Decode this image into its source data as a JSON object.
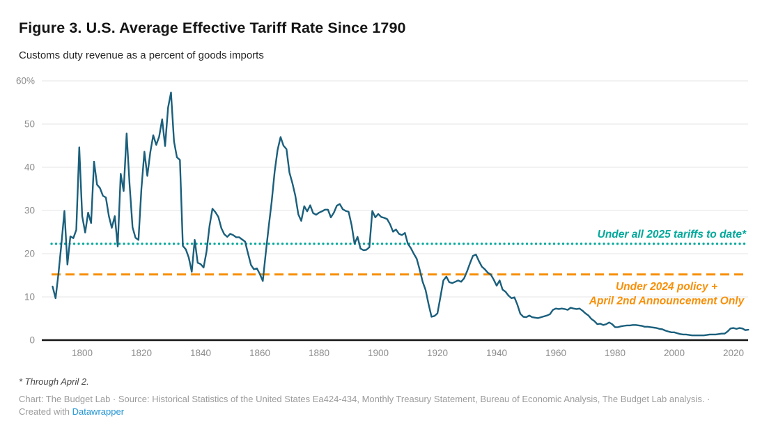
{
  "header": {
    "title": "Figure 3. U.S. Average Effective Tariff Rate Since 1790",
    "subtitle": "Customs duty revenue as a percent of goods imports"
  },
  "footer": {
    "footnote": "* Through April 2.",
    "source_line": "Chart: The Budget Lab · Source: Historical Statistics of the United States Ea424-434, Monthly Treasury Statement, Bureau of Economic Analysis, The Budget Lab analysis. ·",
    "created_prefix": "Created with ",
    "link_label": "Datawrapper"
  },
  "colors": {
    "line": "#1a5f7c",
    "teal": "#00a89b",
    "orange": "#f79009",
    "grid": "#e4e4e4",
    "axis": "#141414",
    "tick_label": "#8c8c8c",
    "link": "#2094d4"
  },
  "chart_data": {
    "type": "line",
    "title": "Figure 3. U.S. Average Effective Tariff Rate Since 1790",
    "subtitle": "Customs duty revenue as a percent of goods imports",
    "xlabel": "",
    "ylabel": "",
    "xlim": [
      1789,
      2026
    ],
    "ylim": [
      0,
      60
    ],
    "grid": "horizontal",
    "legend_position": "none",
    "y_ticks": [
      {
        "v": 0,
        "label": "0"
      },
      {
        "v": 10,
        "label": "10"
      },
      {
        "v": 20,
        "label": "20"
      },
      {
        "v": 30,
        "label": "30"
      },
      {
        "v": 40,
        "label": "40"
      },
      {
        "v": 50,
        "label": "50"
      },
      {
        "v": 60,
        "label": "60%"
      }
    ],
    "x_ticks": [
      {
        "v": 1800,
        "label": "1800"
      },
      {
        "v": 1820,
        "label": "1820"
      },
      {
        "v": 1840,
        "label": "1840"
      },
      {
        "v": 1860,
        "label": "1860"
      },
      {
        "v": 1880,
        "label": "1880"
      },
      {
        "v": 1900,
        "label": "1900"
      },
      {
        "v": 1920,
        "label": "1920"
      },
      {
        "v": 1940,
        "label": "1940"
      },
      {
        "v": 1960,
        "label": "1960"
      },
      {
        "v": 1980,
        "label": "1980"
      },
      {
        "v": 2000,
        "label": "2000"
      },
      {
        "v": 2020,
        "label": "2020"
      }
    ],
    "reference_lines": [
      {
        "id": "tariffs-2025",
        "value": 22.3,
        "style": "dotted",
        "color_key": "teal",
        "label": "Under all 2025 tariffs to date*"
      },
      {
        "id": "policy-2024",
        "value": 15.2,
        "style": "dashed",
        "color_key": "orange",
        "label": "Under 2024 policy + April 2nd Announcement Only",
        "label_lines": [
          "Under 2024 policy +",
          "April 2nd Announcement Only"
        ]
      }
    ],
    "series": [
      {
        "name": "U.S. average effective tariff rate (customs duties as % of goods imports)",
        "points": [
          [
            1790,
            12.4
          ],
          [
            1791,
            9.7
          ],
          [
            1792,
            15.5
          ],
          [
            1793,
            22.5
          ],
          [
            1794,
            29.9
          ],
          [
            1795,
            17.5
          ],
          [
            1796,
            24.0
          ],
          [
            1797,
            23.6
          ],
          [
            1798,
            25.5
          ],
          [
            1799,
            44.6
          ],
          [
            1800,
            28.7
          ],
          [
            1801,
            24.9
          ],
          [
            1802,
            29.5
          ],
          [
            1803,
            27.1
          ],
          [
            1804,
            41.3
          ],
          [
            1805,
            36.0
          ],
          [
            1806,
            35.2
          ],
          [
            1807,
            33.4
          ],
          [
            1808,
            33.0
          ],
          [
            1809,
            28.7
          ],
          [
            1810,
            26.0
          ],
          [
            1811,
            28.7
          ],
          [
            1812,
            21.7
          ],
          [
            1813,
            38.5
          ],
          [
            1814,
            34.5
          ],
          [
            1815,
            47.8
          ],
          [
            1816,
            36.1
          ],
          [
            1817,
            26.1
          ],
          [
            1818,
            23.7
          ],
          [
            1819,
            23.2
          ],
          [
            1820,
            35.0
          ],
          [
            1821,
            43.6
          ],
          [
            1822,
            38.0
          ],
          [
            1823,
            43.5
          ],
          [
            1824,
            47.4
          ],
          [
            1825,
            45.2
          ],
          [
            1826,
            47.1
          ],
          [
            1827,
            51.1
          ],
          [
            1828,
            44.9
          ],
          [
            1829,
            53.8
          ],
          [
            1830,
            57.3
          ],
          [
            1831,
            46.0
          ],
          [
            1832,
            42.3
          ],
          [
            1833,
            41.7
          ],
          [
            1834,
            21.8
          ],
          [
            1835,
            21.0
          ],
          [
            1836,
            19.1
          ],
          [
            1837,
            15.8
          ],
          [
            1838,
            23.2
          ],
          [
            1839,
            17.9
          ],
          [
            1840,
            17.6
          ],
          [
            1841,
            16.8
          ],
          [
            1842,
            20.5
          ],
          [
            1843,
            26.4
          ],
          [
            1844,
            30.4
          ],
          [
            1845,
            29.6
          ],
          [
            1846,
            28.5
          ],
          [
            1847,
            25.9
          ],
          [
            1848,
            24.5
          ],
          [
            1849,
            23.9
          ],
          [
            1850,
            24.6
          ],
          [
            1851,
            24.3
          ],
          [
            1852,
            23.8
          ],
          [
            1853,
            23.8
          ],
          [
            1854,
            23.3
          ],
          [
            1855,
            22.8
          ],
          [
            1856,
            20.1
          ],
          [
            1857,
            17.4
          ],
          [
            1858,
            16.4
          ],
          [
            1859,
            16.6
          ],
          [
            1860,
            15.3
          ],
          [
            1861,
            13.7
          ],
          [
            1862,
            20.1
          ],
          [
            1863,
            26.3
          ],
          [
            1864,
            32.0
          ],
          [
            1865,
            39.0
          ],
          [
            1866,
            44.0
          ],
          [
            1867,
            47.0
          ],
          [
            1868,
            45.0
          ],
          [
            1869,
            44.2
          ],
          [
            1870,
            38.8
          ],
          [
            1871,
            36.3
          ],
          [
            1872,
            33.4
          ],
          [
            1873,
            29.1
          ],
          [
            1874,
            27.6
          ],
          [
            1875,
            31.0
          ],
          [
            1876,
            29.8
          ],
          [
            1877,
            31.2
          ],
          [
            1878,
            29.4
          ],
          [
            1879,
            29.0
          ],
          [
            1880,
            29.5
          ],
          [
            1881,
            29.8
          ],
          [
            1882,
            30.2
          ],
          [
            1883,
            30.2
          ],
          [
            1884,
            28.4
          ],
          [
            1885,
            29.5
          ],
          [
            1886,
            31.1
          ],
          [
            1887,
            31.5
          ],
          [
            1888,
            30.3
          ],
          [
            1889,
            29.9
          ],
          [
            1890,
            29.7
          ],
          [
            1891,
            26.6
          ],
          [
            1892,
            22.3
          ],
          [
            1893,
            23.9
          ],
          [
            1894,
            21.2
          ],
          [
            1895,
            20.8
          ],
          [
            1896,
            20.9
          ],
          [
            1897,
            21.5
          ],
          [
            1898,
            29.9
          ],
          [
            1899,
            28.4
          ],
          [
            1900,
            29.2
          ],
          [
            1901,
            28.5
          ],
          [
            1902,
            28.3
          ],
          [
            1903,
            28.0
          ],
          [
            1904,
            26.8
          ],
          [
            1905,
            25.1
          ],
          [
            1906,
            25.6
          ],
          [
            1907,
            24.6
          ],
          [
            1908,
            24.3
          ],
          [
            1909,
            24.8
          ],
          [
            1910,
            22.3
          ],
          [
            1911,
            21.3
          ],
          [
            1912,
            20.0
          ],
          [
            1913,
            18.8
          ],
          [
            1914,
            16.3
          ],
          [
            1915,
            13.5
          ],
          [
            1916,
            11.6
          ],
          [
            1917,
            8.3
          ],
          [
            1918,
            5.4
          ],
          [
            1919,
            5.6
          ],
          [
            1920,
            6.2
          ],
          [
            1921,
            10.0
          ],
          [
            1922,
            13.8
          ],
          [
            1923,
            14.7
          ],
          [
            1924,
            13.4
          ],
          [
            1925,
            13.2
          ],
          [
            1926,
            13.5
          ],
          [
            1927,
            13.8
          ],
          [
            1928,
            13.5
          ],
          [
            1929,
            14.3
          ],
          [
            1930,
            15.9
          ],
          [
            1931,
            17.8
          ],
          [
            1932,
            19.5
          ],
          [
            1933,
            19.8
          ],
          [
            1934,
            18.3
          ],
          [
            1935,
            17.0
          ],
          [
            1936,
            16.4
          ],
          [
            1937,
            15.6
          ],
          [
            1938,
            15.2
          ],
          [
            1939,
            14.0
          ],
          [
            1940,
            12.6
          ],
          [
            1941,
            13.8
          ],
          [
            1942,
            11.7
          ],
          [
            1943,
            11.2
          ],
          [
            1944,
            10.3
          ],
          [
            1945,
            9.7
          ],
          [
            1946,
            9.9
          ],
          [
            1947,
            8.2
          ],
          [
            1948,
            6.1
          ],
          [
            1949,
            5.4
          ],
          [
            1950,
            5.3
          ],
          [
            1951,
            5.7
          ],
          [
            1952,
            5.3
          ],
          [
            1953,
            5.2
          ],
          [
            1954,
            5.1
          ],
          [
            1955,
            5.3
          ],
          [
            1956,
            5.5
          ],
          [
            1957,
            5.7
          ],
          [
            1958,
            6.0
          ],
          [
            1959,
            7.0
          ],
          [
            1960,
            7.3
          ],
          [
            1961,
            7.2
          ],
          [
            1962,
            7.3
          ],
          [
            1963,
            7.2
          ],
          [
            1964,
            7.0
          ],
          [
            1965,
            7.5
          ],
          [
            1966,
            7.3
          ],
          [
            1967,
            7.2
          ],
          [
            1968,
            7.3
          ],
          [
            1969,
            6.8
          ],
          [
            1970,
            6.2
          ],
          [
            1971,
            5.7
          ],
          [
            1972,
            4.9
          ],
          [
            1973,
            4.4
          ],
          [
            1974,
            3.7
          ],
          [
            1975,
            3.8
          ],
          [
            1976,
            3.5
          ],
          [
            1977,
            3.7
          ],
          [
            1978,
            4.1
          ],
          [
            1979,
            3.7
          ],
          [
            1980,
            3.0
          ],
          [
            1981,
            3.0
          ],
          [
            1982,
            3.2
          ],
          [
            1983,
            3.3
          ],
          [
            1984,
            3.4
          ],
          [
            1985,
            3.4
          ],
          [
            1986,
            3.5
          ],
          [
            1987,
            3.5
          ],
          [
            1988,
            3.4
          ],
          [
            1989,
            3.3
          ],
          [
            1990,
            3.1
          ],
          [
            1991,
            3.1
          ],
          [
            1992,
            3.0
          ],
          [
            1993,
            2.9
          ],
          [
            1994,
            2.8
          ],
          [
            1995,
            2.6
          ],
          [
            1996,
            2.5
          ],
          [
            1997,
            2.2
          ],
          [
            1998,
            2.0
          ],
          [
            1999,
            1.8
          ],
          [
            2000,
            1.8
          ],
          [
            2001,
            1.6
          ],
          [
            2002,
            1.4
          ],
          [
            2003,
            1.3
          ],
          [
            2004,
            1.3
          ],
          [
            2005,
            1.2
          ],
          [
            2006,
            1.1
          ],
          [
            2007,
            1.1
          ],
          [
            2008,
            1.1
          ],
          [
            2009,
            1.1
          ],
          [
            2010,
            1.1
          ],
          [
            2011,
            1.2
          ],
          [
            2012,
            1.3
          ],
          [
            2013,
            1.3
          ],
          [
            2014,
            1.3
          ],
          [
            2015,
            1.4
          ],
          [
            2016,
            1.5
          ],
          [
            2017,
            1.5
          ],
          [
            2018,
            2.0
          ],
          [
            2019,
            2.7
          ],
          [
            2020,
            2.8
          ],
          [
            2021,
            2.6
          ],
          [
            2022,
            2.8
          ],
          [
            2023,
            2.7
          ],
          [
            2024,
            2.3
          ],
          [
            2025,
            2.4
          ]
        ]
      }
    ]
  }
}
